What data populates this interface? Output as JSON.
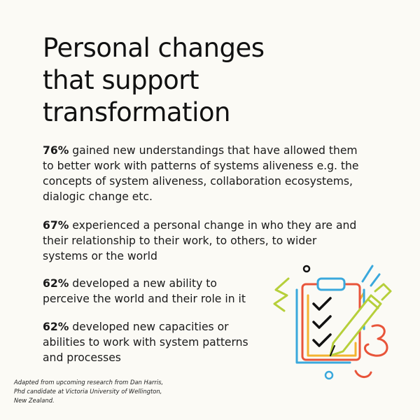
{
  "heading": {
    "line1": "Personal changes",
    "line2": "that support",
    "line3": "transformation"
  },
  "stats": [
    {
      "percent": "76%",
      "line1": " gained new understandings that have allowed them",
      "line2": "to better work with patterns of systems aliveness e.g. the",
      "line3": "concepts of system aliveness, collaboration ecosystems,",
      "line4": "dialogic change etc."
    },
    {
      "percent": "67%",
      "line1": " experienced a personal change in who they are and",
      "line2": "their relationship to their work, to others, to wider",
      "line3": "systems or the world"
    },
    {
      "percent": "62%",
      "line1": " developed a new ability to",
      "line2": "perceive the world and their role in it"
    },
    {
      "percent": "62%",
      "line1": " developed new capacities or",
      "line2": "abilities to work with system patterns",
      "line3": "and processes"
    }
  ],
  "credit": {
    "line1": "Adapted from upcoming research from Dan Harris,",
    "line2": "Phd candidate at Victoria University of Wellington,",
    "line3": "New Zealand."
  },
  "illustration": {
    "icon": "clipboard-checklist-pencil-icon",
    "colors": {
      "blue": "#3aa8dc",
      "orange": "#e8543a",
      "yellow": "#f3b330",
      "green": "#b6cf3a",
      "black": "#111111"
    }
  }
}
